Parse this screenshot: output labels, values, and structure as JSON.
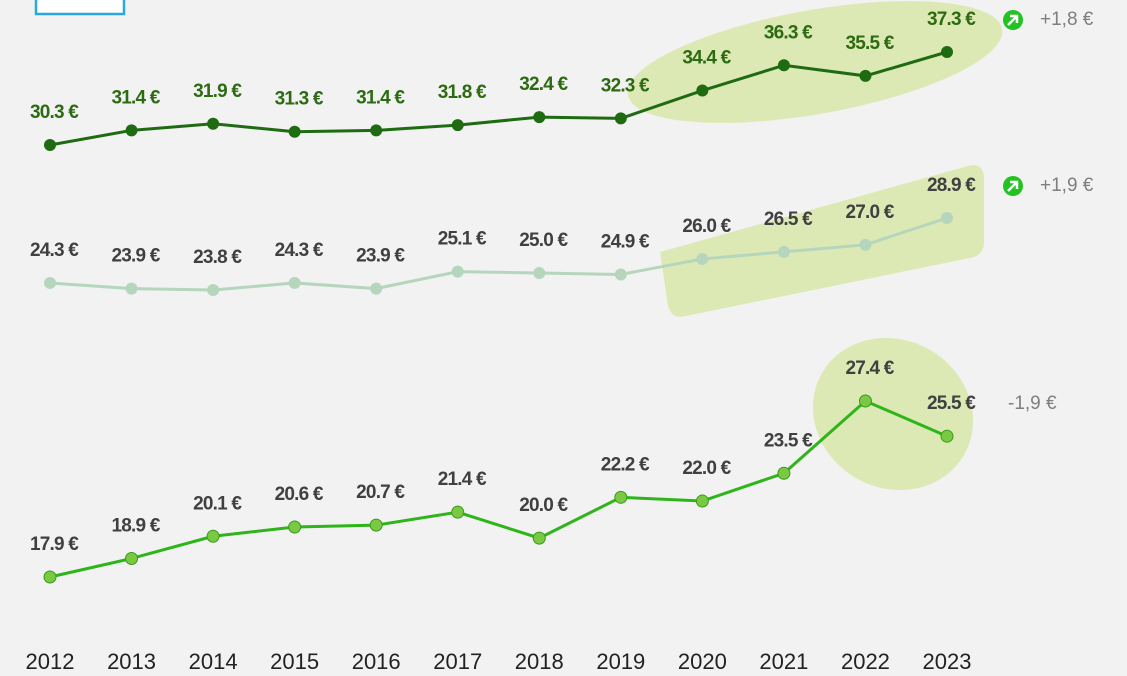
{
  "chart_data": {
    "type": "line",
    "x": [
      "2012",
      "2013",
      "2014",
      "2015",
      "2016",
      "2017",
      "2018",
      "2019",
      "2020",
      "2021",
      "2022",
      "2023"
    ],
    "series": [
      {
        "color": "#1e6b12",
        "label_color": "#2d6b12",
        "values": [
          30.3,
          31.4,
          31.9,
          31.3,
          31.4,
          31.8,
          32.4,
          32.3,
          34.4,
          36.3,
          35.5,
          37.3
        ],
        "value_labels": [
          "30.3 €",
          "31.4 €",
          "31.9 €",
          "31.3 €",
          "31.4 €",
          "31.8 €",
          "32.4 €",
          "32.3 €",
          "34.4 €",
          "36.3 €",
          "35.5 €",
          "37.3 €"
        ]
      },
      {
        "color": "#b5d6bc",
        "label_color": "#404040",
        "values": [
          24.3,
          23.9,
          23.8,
          24.3,
          23.9,
          25.1,
          25.0,
          24.9,
          26.0,
          26.5,
          27.0,
          28.9
        ],
        "value_labels": [
          "24.3 €",
          "23.9 €",
          "23.8 €",
          "24.3 €",
          "23.9 €",
          "25.1 €",
          "25.0 €",
          "24.9 €",
          "26.0 €",
          "26.5 €",
          "27.0 €",
          "28.9 €"
        ]
      },
      {
        "color": "#2db51a",
        "marker_color": "#7ac943",
        "label_color": "#404040",
        "values": [
          17.9,
          18.9,
          20.1,
          20.6,
          20.7,
          21.4,
          20.0,
          22.2,
          22.0,
          23.5,
          27.4,
          25.5
        ],
        "value_labels": [
          "17.9 €",
          "18.9 €",
          "20.1 €",
          "20.6 €",
          "20.7 €",
          "21.4 €",
          "20.0 €",
          "22.2 €",
          "22.0 €",
          "23.5 €",
          "27.4 €",
          "25.5 €"
        ]
      }
    ],
    "annotations": [
      "+1,8 €",
      "+1,9 €",
      "-1,9 €"
    ]
  }
}
